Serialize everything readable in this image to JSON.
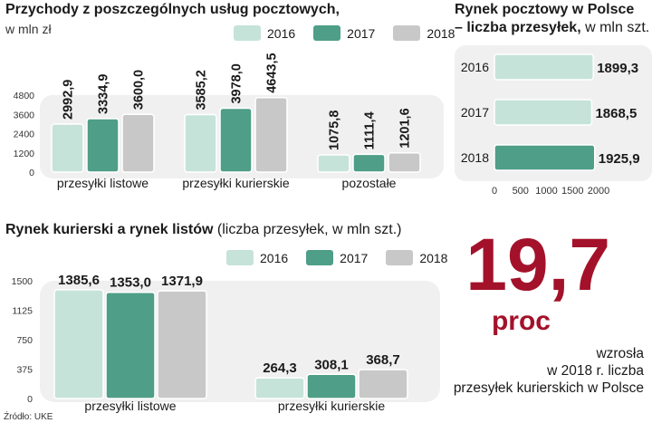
{
  "colors": {
    "c2016": "#c6e3d9",
    "c2017": "#4f9e87",
    "c2018": "#c9c8c8",
    "accent": "#a3122a",
    "panel": "#f0f0f0"
  },
  "legend_years": [
    "2016",
    "2017",
    "2018"
  ],
  "chart1": {
    "title": "Przychody z poszczególnych usług pocztowych,",
    "subtitle": "w mln zł",
    "yticks": [
      "4800",
      "3600",
      "2400",
      "1200",
      "0"
    ],
    "ymax": 4800,
    "categories": [
      "przesyłki listowe",
      "przesyłki kurierskie",
      "pozostałe"
    ],
    "values": [
      [
        "2992,9",
        "3334,9",
        "3600,0"
      ],
      [
        "3585,2",
        "3978,0",
        "4643,5"
      ],
      [
        "1075,8",
        "1111,4",
        "1201,6"
      ]
    ]
  },
  "chart2": {
    "title": "Rynek pocztowy w Polsce",
    "title2_bold": "– liczba przesyłek,",
    "title2_light": " w mln szt.",
    "years": [
      "2016",
      "2017",
      "2018"
    ],
    "values": [
      "1899,3",
      "1868,5",
      "1925,9"
    ],
    "xticks": [
      "0",
      "500",
      "1000",
      "1500",
      "2000"
    ],
    "xmax": 2000
  },
  "chart3": {
    "title": "Rynek kurierski a rynek listów",
    "title_light": " (liczba przesyłek, w mln szt.)",
    "yticks": [
      "1500",
      "1125",
      "750",
      "375",
      "0"
    ],
    "ymax": 1500,
    "categories": [
      "przesyłki listowe",
      "przesyłki kurierskie"
    ],
    "values": [
      [
        "1385,6",
        "1353,0",
        "1371,9"
      ],
      [
        "264,3",
        "308,1",
        "368,7"
      ]
    ]
  },
  "highlight": {
    "number": "19,7",
    "unit": "proc",
    "text": [
      "wzrosła",
      "w 2018 r. liczba",
      "przesyłek kurierskich w Polsce"
    ]
  },
  "source": "Źródło: UKE",
  "chart_data": [
    {
      "type": "bar",
      "title": "Przychody z poszczególnych usług pocztowych, w mln zł",
      "categories": [
        "przesyłki listowe",
        "przesyłki kurierskie",
        "pozostałe"
      ],
      "series": [
        {
          "name": "2016",
          "values": [
            2992.9,
            3585.2,
            1075.8
          ]
        },
        {
          "name": "2017",
          "values": [
            3334.9,
            3978.0,
            1111.4
          ]
        },
        {
          "name": "2018",
          "values": [
            3600.0,
            4643.5,
            1201.6
          ]
        }
      ],
      "ylim": [
        0,
        4800
      ]
    },
    {
      "type": "bar",
      "title": "Rynek pocztowy w Polsce – liczba przesyłek, w mln szt.",
      "categories": [
        "2016",
        "2017",
        "2018"
      ],
      "values": [
        1899.3,
        1868.5,
        1925.9
      ],
      "xlim": [
        0,
        2000
      ]
    },
    {
      "type": "bar",
      "title": "Rynek kurierski a rynek listów (liczba przesyłek, w mln szt.)",
      "categories": [
        "przesyłki listowe",
        "przesyłki kurierskie"
      ],
      "series": [
        {
          "name": "2016",
          "values": [
            1385.6,
            264.3
          ]
        },
        {
          "name": "2017",
          "values": [
            1353.0,
            308.1
          ]
        },
        {
          "name": "2018",
          "values": [
            1371.9,
            368.7
          ]
        }
      ],
      "ylim": [
        0,
        1500
      ]
    }
  ]
}
